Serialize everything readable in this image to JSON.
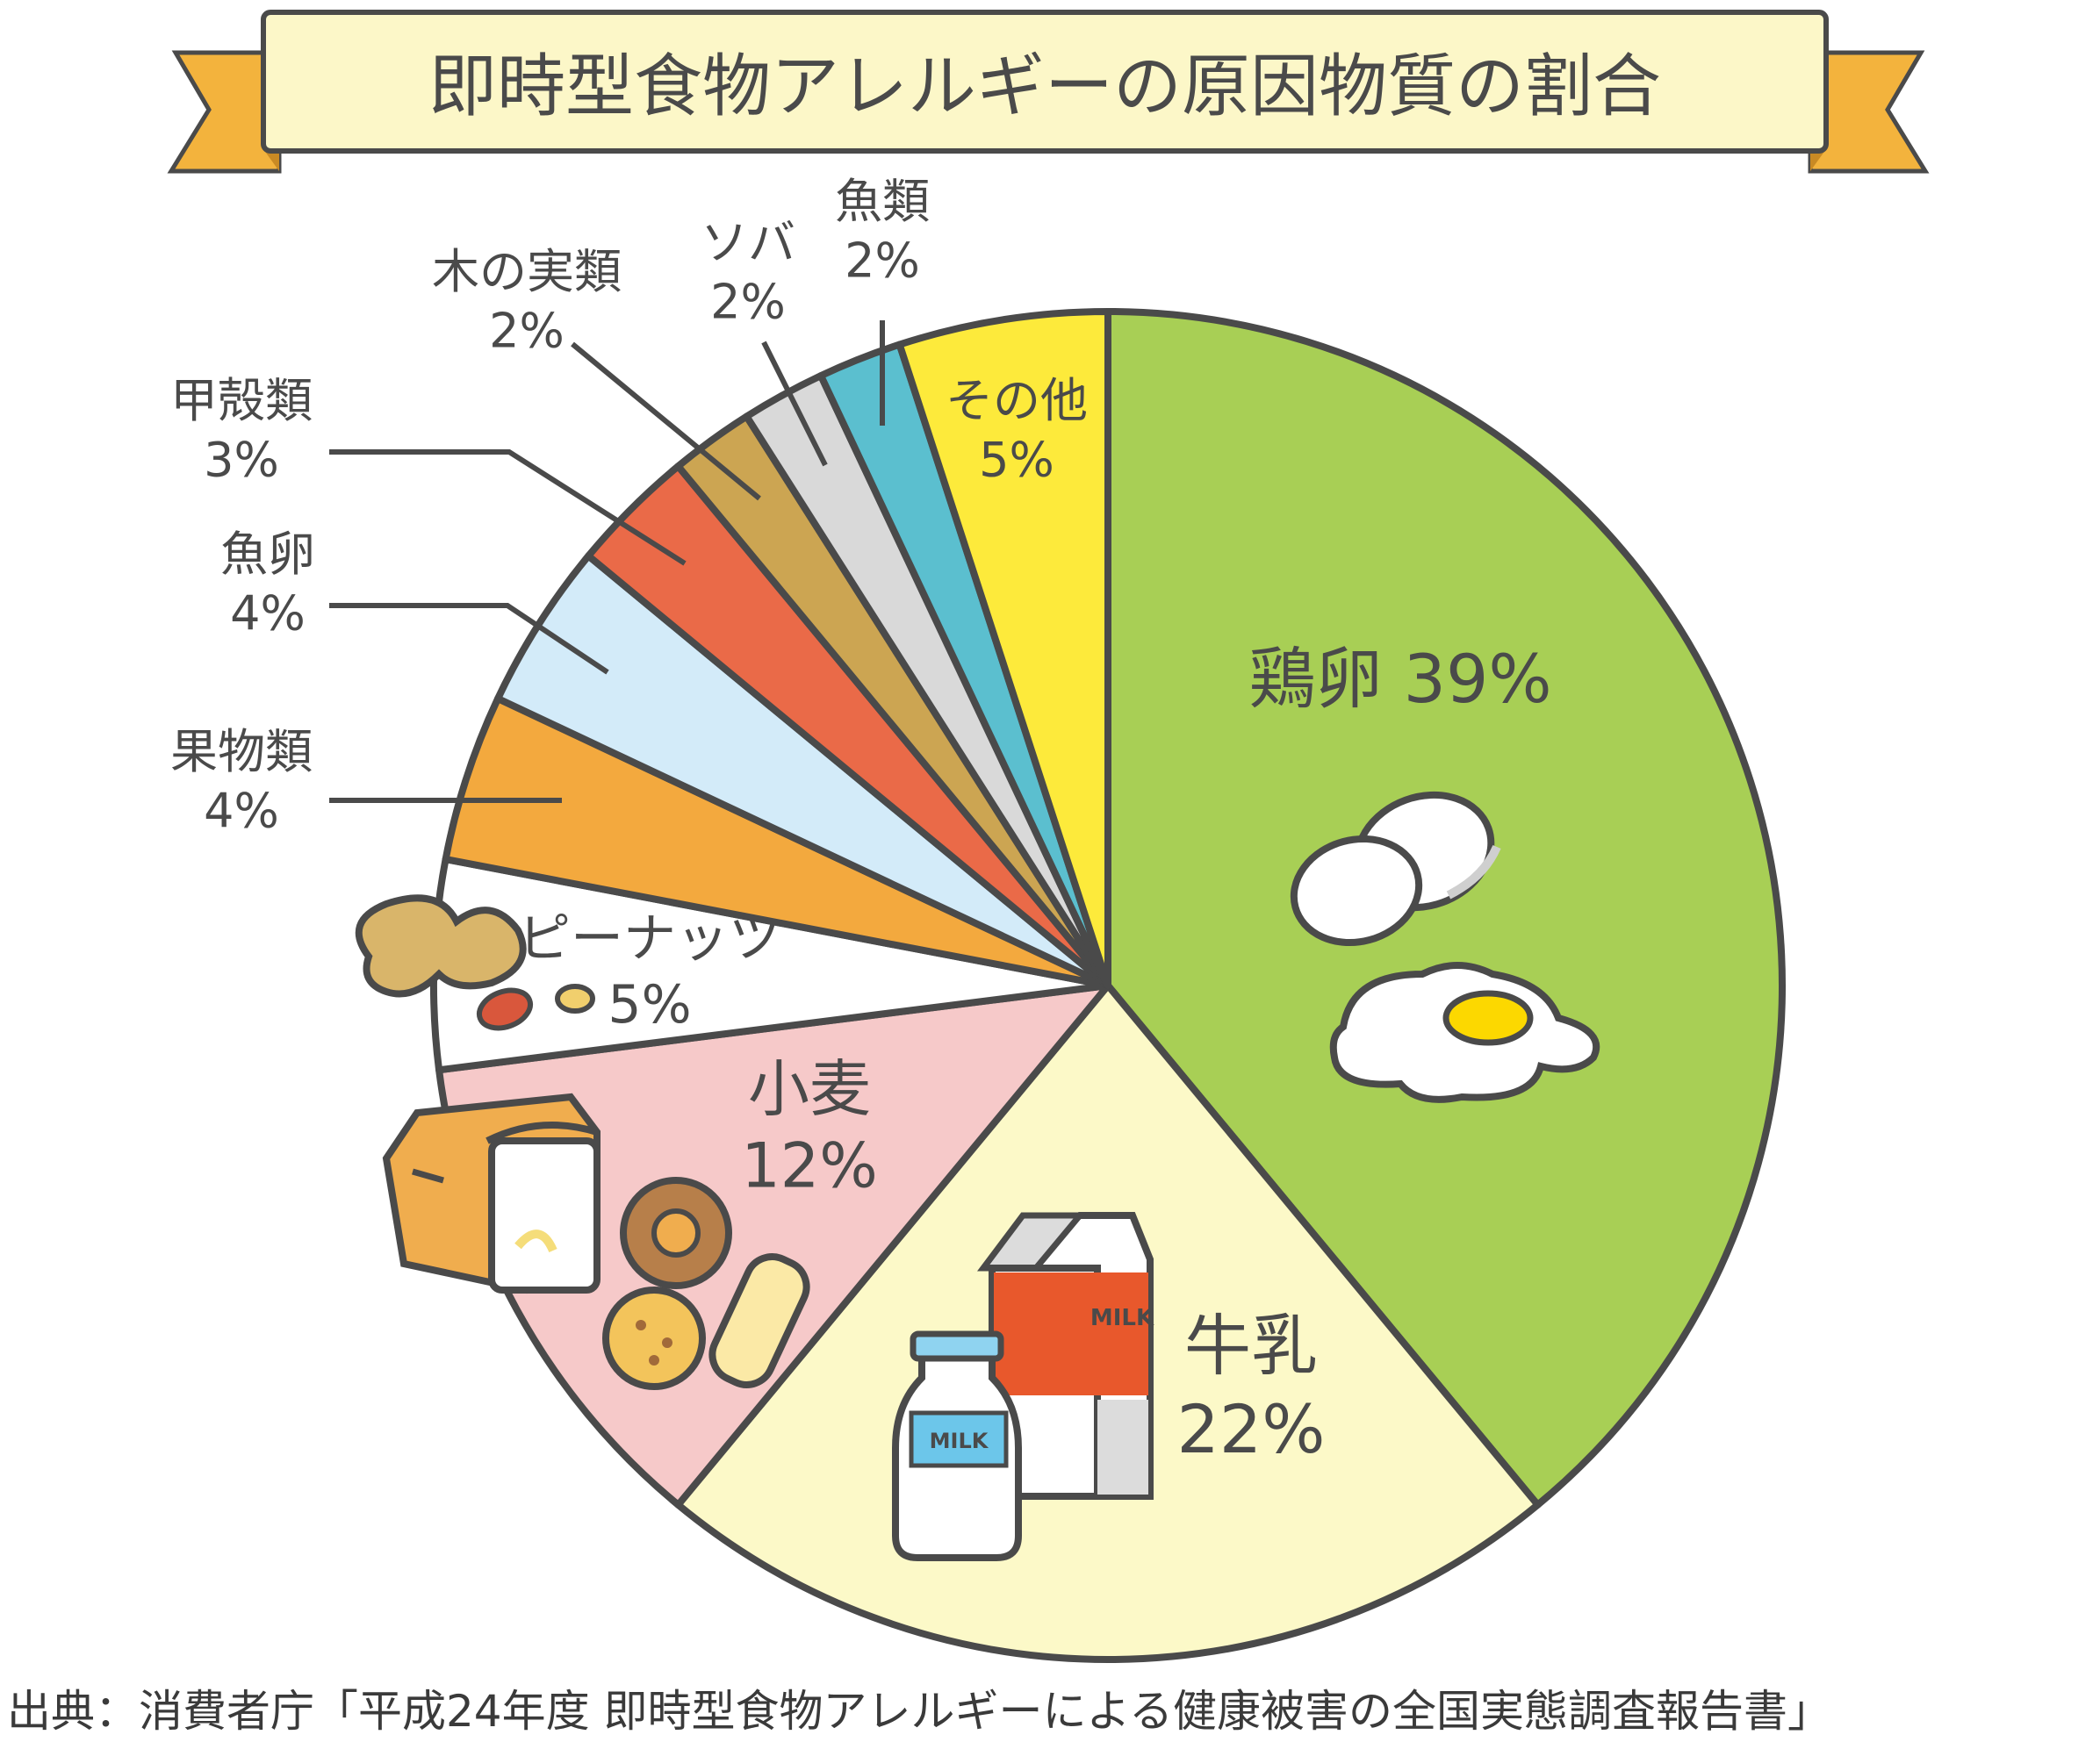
{
  "chart_data": {
    "type": "pie",
    "title": "即時型食物アレルギーの原因物質の割合",
    "unit": "%",
    "slices": [
      {
        "label": "鶏卵",
        "value": 39,
        "value_text": "39%",
        "color": "#a8cf55"
      },
      {
        "label": "牛乳",
        "value": 22,
        "value_text": "22%",
        "color": "#fcf9c8"
      },
      {
        "label": "小麦",
        "value": 12,
        "value_text": "12%",
        "color": "#f6c9c9"
      },
      {
        "label": "ピーナッツ",
        "value": 5,
        "value_text": "5%",
        "color": "#ffffff"
      },
      {
        "label": "果物類",
        "value": 4,
        "value_text": "4%",
        "color": "#f3a93e"
      },
      {
        "label": "魚卵",
        "value": 4,
        "value_text": "4%",
        "color": "#d3ebf9"
      },
      {
        "label": "甲殻類",
        "value": 3,
        "value_text": "3%",
        "color": "#ea6a48"
      },
      {
        "label": "木の実類",
        "value": 2,
        "value_text": "2%",
        "color": "#cca552"
      },
      {
        "label": "ソバ",
        "value": 2,
        "value_text": "2%",
        "color": "#d9d9d9"
      },
      {
        "label": "魚類",
        "value": 2,
        "value_text": "2%",
        "color": "#5bbfcf"
      },
      {
        "label": "その他",
        "value": 5,
        "value_text": "5%",
        "color": "#fdea3b"
      }
    ]
  },
  "source": "出典：消費者庁「平成24年度 即時型食物アレルギーによる健康被害の全国実態調査報告書」",
  "icons": [
    "eggs-icon",
    "fried-egg-icon",
    "milk-carton-icon",
    "milk-bottle-icon",
    "bread-icon",
    "cookie-icon",
    "biscuit-icon",
    "peanut-icon"
  ]
}
